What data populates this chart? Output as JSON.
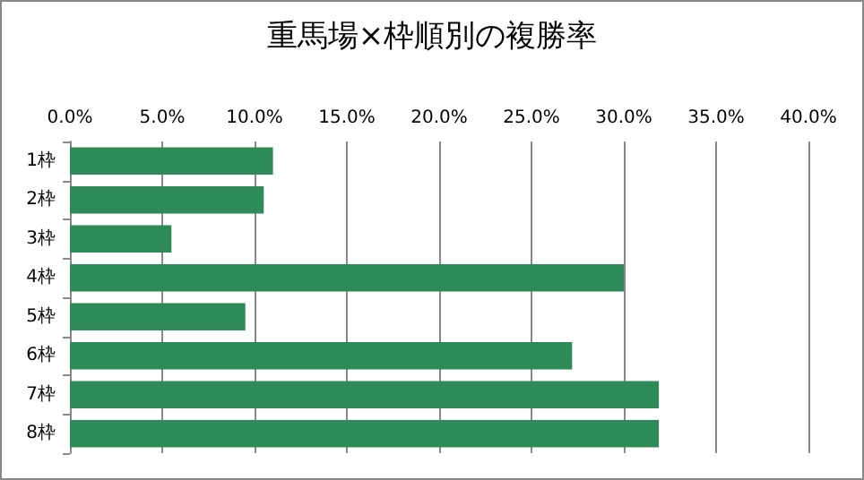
{
  "chart_data": {
    "type": "bar",
    "orientation": "horizontal",
    "title": "重馬場×枠順別の複勝率",
    "categories": [
      "1枠",
      "2枠",
      "3枠",
      "4枠",
      "5枠",
      "6枠",
      "7枠",
      "8枠"
    ],
    "values": [
      11.0,
      10.5,
      5.5,
      30.0,
      9.5,
      27.2,
      31.9,
      31.9
    ],
    "color": "#2e8b57",
    "xlim": [
      0,
      40
    ],
    "xticks": [
      {
        "value": 0,
        "label": "0.0%"
      },
      {
        "value": 5,
        "label": "5.0%"
      },
      {
        "value": 10,
        "label": "10.0%"
      },
      {
        "value": 15,
        "label": "15.0%"
      },
      {
        "value": 20,
        "label": "20.0%"
      },
      {
        "value": 25,
        "label": "25.0%"
      },
      {
        "value": 30,
        "label": "30.0%"
      },
      {
        "value": 35,
        "label": "35.0%"
      },
      {
        "value": 40,
        "label": "40.0%"
      }
    ],
    "grid": "x"
  }
}
